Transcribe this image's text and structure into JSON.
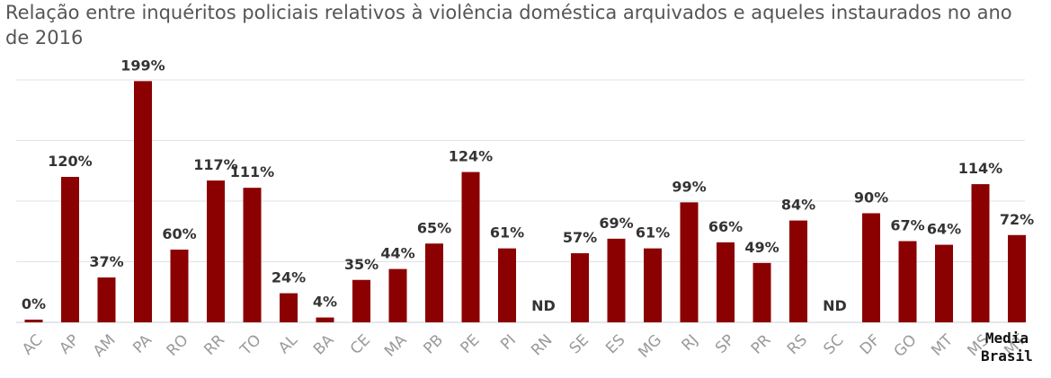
{
  "chart_data": {
    "type": "bar",
    "title": "Relação entre inquéritos policiais relativos à violência doméstica arquivados e aqueles instaurados no ano de 2016",
    "xlabel": "",
    "ylabel": "",
    "ylim": [
      0,
      200
    ],
    "grid": true,
    "bar_color": "#8b0000",
    "categories": [
      "AC",
      "AP",
      "AM",
      "PA",
      "RO",
      "RR",
      "TO",
      "AL",
      "BA",
      "CE",
      "MA",
      "PB",
      "PE",
      "PI",
      "RN",
      "SE",
      "ES",
      "MG",
      "RJ",
      "SP",
      "PR",
      "RS",
      "SC",
      "DF",
      "GO",
      "MT",
      "MS",
      "MT"
    ],
    "values": [
      0,
      120,
      37,
      199,
      60,
      117,
      111,
      24,
      4,
      35,
      44,
      65,
      124,
      61,
      null,
      57,
      69,
      61,
      99,
      66,
      49,
      84,
      null,
      90,
      67,
      64,
      114,
      72
    ],
    "data_labels": [
      "0%",
      "120%",
      "37%",
      "199%",
      "60%",
      "117%",
      "111%",
      "24%",
      "4%",
      "35%",
      "44%",
      "65%",
      "124%",
      "61%",
      "ND",
      "57%",
      "69%",
      "61%",
      "99%",
      "66%",
      "49%",
      "84%",
      "ND",
      "90%",
      "67%",
      "64%",
      "114%",
      "72%"
    ]
  },
  "source": {
    "line1": "Media",
    "line2": "Brasil"
  }
}
